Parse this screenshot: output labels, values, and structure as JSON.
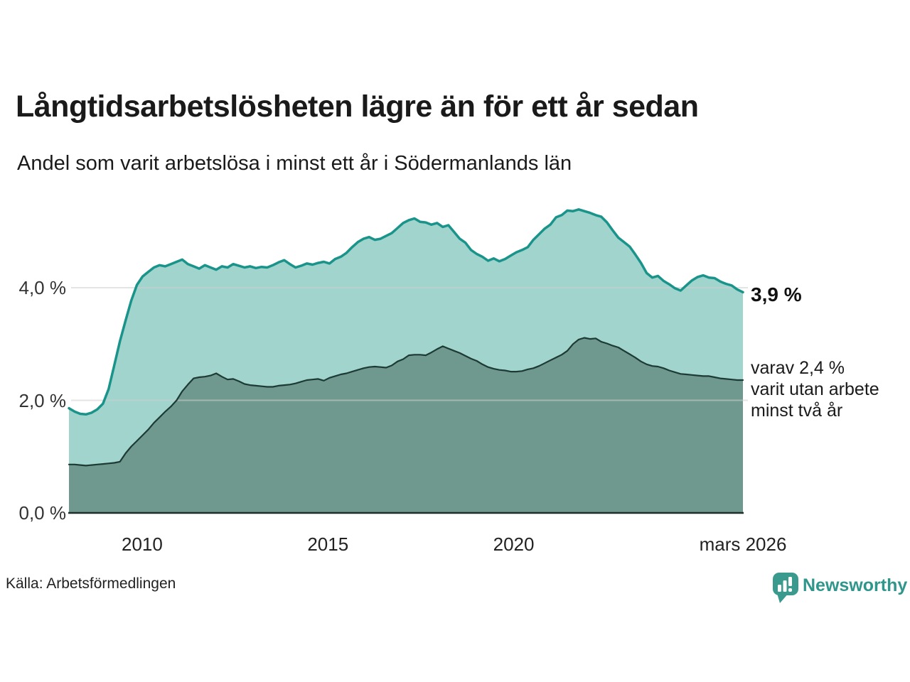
{
  "header": {
    "title": "Långtidsarbetslösheten lägre än för ett år sedan",
    "subtitle": "Andel som varit arbetslösa i minst ett år i Södermanlands län"
  },
  "annotations": {
    "latest_total": "3,9 %",
    "two_year_line1": "varav 2,4 %",
    "two_year_line2": "varit utan arbete",
    "two_year_line3": "minst två år"
  },
  "footer": {
    "source": "Källa: Arbetsförmedlingen",
    "brand": "Newsworthy",
    "brand_color": "#2f968b"
  },
  "chart_data": {
    "type": "area",
    "title": "Långtidsarbetslösheten lägre än för ett år sedan",
    "subtitle": "Andel som varit arbetslösa i minst ett år i Södermanlands län",
    "unit": "%",
    "grid": true,
    "legend": "none",
    "x_range": [
      2008.03,
      2026.17
    ],
    "ylim": [
      0,
      5.6
    ],
    "y_ticks": [
      {
        "value": 0,
        "label": "0,0 %"
      },
      {
        "value": 2,
        "label": "2,0 %"
      },
      {
        "value": 4,
        "label": "4,0 %"
      }
    ],
    "x_ticks": [
      {
        "value": 2010,
        "label": "2010"
      },
      {
        "value": 2015,
        "label": "2015"
      },
      {
        "value": 2020,
        "label": "2020"
      },
      {
        "value": 2026.17,
        "label": "mars 2026"
      }
    ],
    "latest_values": {
      "total": 3.9,
      "two_years": 2.4
    },
    "series": [
      {
        "name": "Andel arbetslösa minst ett år",
        "stroke": "#1a948a",
        "stroke_width": 3.5,
        "fill": "#a0d4cd",
        "values": [
          1.86,
          1.8,
          1.76,
          1.75,
          1.78,
          1.84,
          1.94,
          2.2,
          2.62,
          3.05,
          3.42,
          3.77,
          4.05,
          4.2,
          4.28,
          4.36,
          4.4,
          4.38,
          4.42,
          4.46,
          4.5,
          4.42,
          4.38,
          4.34,
          4.4,
          4.36,
          4.32,
          4.38,
          4.36,
          4.42,
          4.39,
          4.36,
          4.38,
          4.35,
          4.37,
          4.36,
          4.4,
          4.45,
          4.49,
          4.42,
          4.36,
          4.39,
          4.43,
          4.41,
          4.44,
          4.46,
          4.43,
          4.51,
          4.55,
          4.62,
          4.72,
          4.81,
          4.87,
          4.9,
          4.85,
          4.87,
          4.92,
          4.97,
          5.06,
          5.15,
          5.2,
          5.23,
          5.17,
          5.16,
          5.12,
          5.15,
          5.08,
          5.11,
          4.99,
          4.87,
          4.8,
          4.67,
          4.6,
          4.55,
          4.48,
          4.52,
          4.47,
          4.51,
          4.57,
          4.63,
          4.67,
          4.72,
          4.85,
          4.95,
          5.05,
          5.12,
          5.25,
          5.29,
          5.37,
          5.36,
          5.39,
          5.36,
          5.33,
          5.29,
          5.26,
          5.16,
          5.02,
          4.89,
          4.81,
          4.73,
          4.59,
          4.44,
          4.26,
          4.18,
          4.21,
          4.12,
          4.06,
          3.99,
          3.95,
          4.04,
          4.13,
          4.19,
          4.22,
          4.18,
          4.17,
          4.11,
          4.07,
          4.04,
          3.97,
          3.92
        ]
      },
      {
        "name": "Varav utan arbete minst två år",
        "stroke": "#1d3a34",
        "stroke_width": 2.2,
        "fill": "#6f998f",
        "values": [
          0.86,
          0.86,
          0.85,
          0.84,
          0.85,
          0.86,
          0.87,
          0.88,
          0.89,
          0.91,
          1.06,
          1.18,
          1.28,
          1.38,
          1.48,
          1.6,
          1.7,
          1.8,
          1.89,
          2.0,
          2.16,
          2.28,
          2.39,
          2.41,
          2.42,
          2.44,
          2.48,
          2.42,
          2.37,
          2.38,
          2.34,
          2.29,
          2.27,
          2.26,
          2.25,
          2.24,
          2.24,
          2.26,
          2.27,
          2.28,
          2.3,
          2.33,
          2.36,
          2.37,
          2.38,
          2.35,
          2.4,
          2.43,
          2.46,
          2.48,
          2.51,
          2.54,
          2.57,
          2.59,
          2.6,
          2.59,
          2.58,
          2.62,
          2.69,
          2.73,
          2.8,
          2.81,
          2.81,
          2.8,
          2.85,
          2.91,
          2.96,
          2.92,
          2.88,
          2.84,
          2.79,
          2.74,
          2.7,
          2.64,
          2.59,
          2.56,
          2.54,
          2.53,
          2.51,
          2.51,
          2.52,
          2.55,
          2.57,
          2.61,
          2.66,
          2.71,
          2.76,
          2.81,
          2.88,
          3.0,
          3.08,
          3.11,
          3.09,
          3.1,
          3.04,
          3.01,
          2.97,
          2.94,
          2.88,
          2.82,
          2.76,
          2.69,
          2.64,
          2.61,
          2.6,
          2.57,
          2.53,
          2.5,
          2.47,
          2.46,
          2.45,
          2.44,
          2.43,
          2.43,
          2.41,
          2.39,
          2.38,
          2.37,
          2.36,
          2.36
        ]
      }
    ],
    "gridline_color": "#cfcfcf",
    "axis_color": "#1f2d2b"
  }
}
